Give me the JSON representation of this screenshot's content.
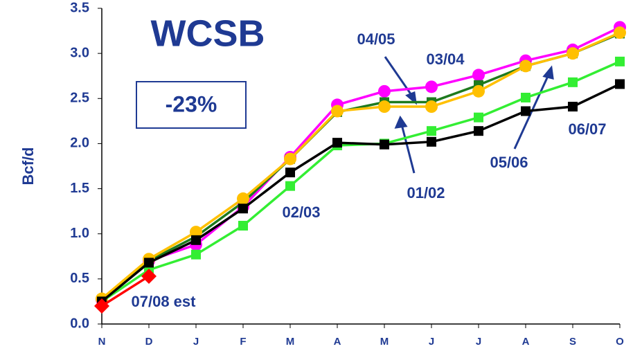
{
  "chart_data": {
    "type": "line",
    "title": "WCSB",
    "annotation_box": "-23%",
    "y_label": "Bcf/d",
    "categories": [
      "N",
      "D",
      "J",
      "F",
      "M",
      "A",
      "M",
      "J",
      "J",
      "A",
      "S",
      "O"
    ],
    "series": [
      {
        "color": "#ff00ff",
        "marker": "circle",
        "values": [
          0.27,
          0.7,
          0.88,
          1.3,
          1.85,
          2.43,
          2.58,
          2.63,
          2.76,
          2.92,
          3.04,
          3.29
        ]
      },
      {
        "color": "#1e7a1e",
        "marker": "square",
        "values": [
          0.27,
          0.7,
          0.97,
          1.35,
          1.83,
          2.35,
          2.46,
          2.46,
          2.65,
          2.86,
          3.0,
          3.22
        ]
      },
      {
        "color": "#ffc000",
        "marker": "circle",
        "values": [
          0.28,
          0.72,
          1.02,
          1.39,
          1.83,
          2.36,
          2.41,
          2.41,
          2.58,
          2.86,
          3.0,
          3.23
        ]
      },
      {
        "color": "#33ee33",
        "marker": "square",
        "values": [
          0.25,
          0.6,
          0.77,
          1.09,
          1.53,
          1.98,
          2.0,
          2.14,
          2.29,
          2.51,
          2.68,
          2.91
        ]
      },
      {
        "color": "#000000",
        "marker": "square",
        "values": [
          0.25,
          0.68,
          0.93,
          1.28,
          1.68,
          2.01,
          1.99,
          2.02,
          2.14,
          2.36,
          2.41,
          2.66
        ]
      },
      {
        "color": "#ff0000",
        "marker": "diamond",
        "values": [
          0.2,
          0.53,
          null,
          null,
          null,
          null,
          null,
          null,
          null,
          null,
          null,
          null
        ]
      }
    ],
    "annotations": [
      "04/05",
      "03/04",
      "01/02",
      "02/03",
      "05/06",
      "06/07",
      "07/08 est"
    ],
    "ylim": [
      0,
      3.5
    ],
    "yticks": [
      {
        "value": 0,
        "label": "0.0"
      },
      {
        "value": 0.5,
        "label": "0.5"
      },
      {
        "value": 1,
        "label": "1.0"
      },
      {
        "value": 1.5,
        "label": "1.5"
      },
      {
        "value": 2,
        "label": "2.0"
      },
      {
        "value": 2.5,
        "label": "2.5"
      },
      {
        "value": 3,
        "label": "3.0"
      },
      {
        "value": 3.5,
        "label": "3.5"
      }
    ],
    "grid": false
  }
}
